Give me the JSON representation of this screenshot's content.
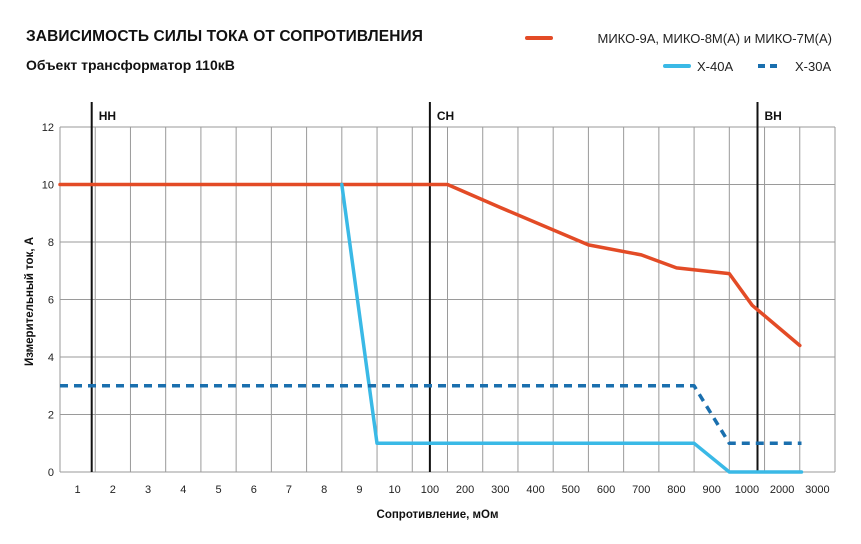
{
  "header": {
    "title": "ЗАВИСИМОСТЬ СИЛЫ ТОКА ОТ СОПРОТИВЛЕНИЯ",
    "subtitle": "Объект трансформатор 110кВ"
  },
  "colors": {
    "miko": "#e34b26",
    "x40": "#3ab9e6",
    "x30": "#1a6fae",
    "grid": "#9a9a9a",
    "zone": "#111111"
  },
  "chart_data": {
    "type": "line",
    "title": "ЗАВИСИМОСТЬ СИЛЫ ТОКА ОТ СОПРОТИВЛЕНИЯ",
    "subtitle": "Объект трансформатор 110кВ",
    "xlabel": "Сопротивление, мОм",
    "ylabel": "Измерительный ток, А",
    "x_ticks": [
      "1",
      "2",
      "3",
      "4",
      "5",
      "6",
      "7",
      "8",
      "9",
      "10",
      "100",
      "200",
      "300",
      "400",
      "500",
      "600",
      "700",
      "800",
      "900",
      "1000",
      "2000",
      "3000"
    ],
    "x_scale": "piecewise: 1–10 step 1, 100–1000 step 100, 1000–3000 step 1000",
    "ylim": [
      0,
      12
    ],
    "y_ticks": [
      "0",
      "2",
      "4",
      "6",
      "8",
      "10",
      "12"
    ],
    "grid": true,
    "legend": "top-right",
    "zones": [
      {
        "label": "НН",
        "x": 1.4
      },
      {
        "label": "СН",
        "x": 100
      },
      {
        "label": "ВН",
        "x": 1300
      }
    ],
    "series": [
      {
        "name": "МИКО-9А, МИКО-8М(А) и МИКО-7М(А)",
        "style": "solid",
        "points": [
          [
            0.5,
            10
          ],
          [
            8.5,
            10
          ],
          [
            150,
            10
          ],
          [
            300,
            9.2
          ],
          [
            550,
            7.9
          ],
          [
            700,
            7.55
          ],
          [
            800,
            7.1
          ],
          [
            950,
            6.9
          ],
          [
            1150,
            5.8
          ],
          [
            2500,
            4.4
          ]
        ]
      },
      {
        "name": "X-40A",
        "style": "solid",
        "points": [
          [
            8.5,
            10
          ],
          [
            9.5,
            1
          ],
          [
            850,
            1
          ],
          [
            950,
            0
          ],
          [
            2550,
            0
          ]
        ]
      },
      {
        "name": "X-30A",
        "style": "dashed",
        "points": [
          [
            0.5,
            3
          ],
          [
            850,
            3
          ],
          [
            950,
            1
          ],
          [
            2550,
            1
          ]
        ]
      }
    ]
  }
}
